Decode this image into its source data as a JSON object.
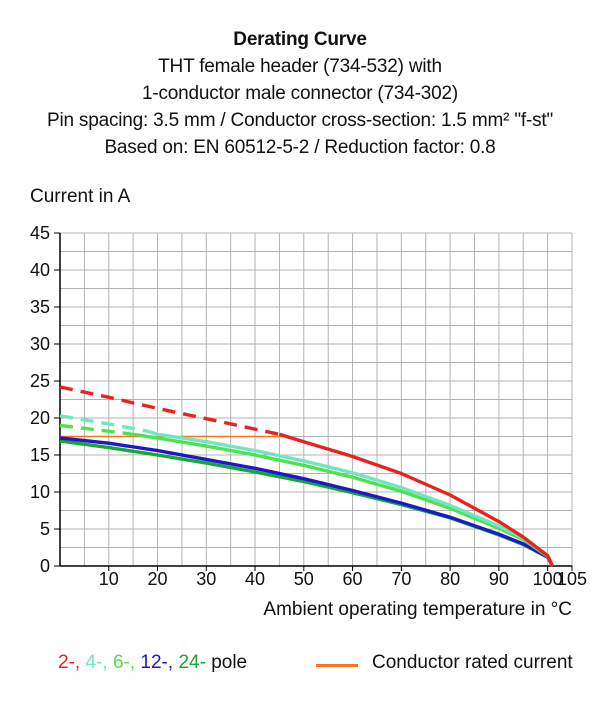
{
  "title_lines": [
    "Derating Curve",
    "THT female header (734-532) with",
    "1-conductor male connector (734-302)",
    "Pin spacing: 3.5 mm / Conductor cross-section: 1.5 mm² \"f-st\"",
    "Based on: EN 60512-5-2 / Reduction factor: 0.8"
  ],
  "legend": {
    "poles": [
      {
        "text": "2-",
        "color": "#e8231f"
      },
      {
        "text": "4-",
        "color": "#6fe8c0"
      },
      {
        "text": "6-",
        "color": "#50e050"
      },
      {
        "text": "12-",
        "color": "#1a1ac8"
      },
      {
        "text": "24-",
        "color": "#18a830"
      }
    ],
    "poles_suffix": "pole",
    "rated_label": "Conductor rated current",
    "rated_color": "#f07820"
  },
  "chart_data": {
    "type": "line",
    "title": "Derating Curve",
    "xlabel": "Ambient operating temperature in °C",
    "ylabel": "Current in A",
    "xlim": [
      0,
      105
    ],
    "ylim": [
      0,
      45
    ],
    "xticks": [
      10,
      20,
      30,
      40,
      50,
      60,
      70,
      80,
      90,
      100,
      105
    ],
    "yticks": [
      0,
      5,
      10,
      15,
      20,
      25,
      30,
      35,
      40,
      45
    ],
    "grid": true,
    "series": [
      {
        "name": "2-",
        "color": "#e8231f",
        "dashed": {
          "x": [
            0,
            10,
            20,
            30,
            40,
            45
          ],
          "y": [
            24.2,
            22.8,
            21.3,
            19.9,
            18.5,
            17.8
          ]
        },
        "solid": {
          "x": [
            45,
            50,
            60,
            70,
            80,
            90,
            95,
            100,
            101
          ],
          "y": [
            17.8,
            16.8,
            14.8,
            12.5,
            9.6,
            6.0,
            3.9,
            1.4,
            0
          ]
        }
      },
      {
        "name": "4-",
        "color": "#6fe8c0",
        "dashed": {
          "x": [
            0,
            10,
            18
          ],
          "y": [
            20.3,
            19.2,
            18.2
          ]
        },
        "solid": {
          "x": [
            18,
            20,
            30,
            40,
            50,
            60,
            70,
            80,
            90,
            95,
            100,
            101
          ],
          "y": [
            18.2,
            17.8,
            16.8,
            15.6,
            14.2,
            12.6,
            10.6,
            8.2,
            5.4,
            3.8,
            1.4,
            0
          ]
        }
      },
      {
        "name": "6-",
        "color": "#50e050",
        "dashed": {
          "x": [
            0,
            10,
            15
          ],
          "y": [
            19.0,
            18.2,
            17.8
          ]
        },
        "solid": {
          "x": [
            15,
            20,
            30,
            40,
            50,
            60,
            70,
            80,
            90,
            95,
            100,
            101
          ],
          "y": [
            17.8,
            17.3,
            16.2,
            15.0,
            13.6,
            12.0,
            10.1,
            7.8,
            5.1,
            3.6,
            1.3,
            0
          ]
        }
      },
      {
        "name": "12-",
        "color": "#1a1ac8",
        "solid": {
          "x": [
            0,
            10,
            20,
            30,
            40,
            50,
            60,
            70,
            80,
            90,
            95,
            100,
            101
          ],
          "y": [
            17.3,
            16.6,
            15.6,
            14.4,
            13.2,
            11.8,
            10.2,
            8.5,
            6.6,
            4.3,
            3.0,
            1.2,
            0
          ]
        }
      },
      {
        "name": "24-",
        "color": "#18a830",
        "solid": {
          "x": [
            0,
            10,
            20,
            30,
            40,
            50,
            60,
            70,
            80,
            90,
            95,
            100,
            101
          ],
          "y": [
            16.9,
            16.0,
            15.0,
            13.9,
            12.7,
            11.4,
            9.9,
            8.3,
            6.5,
            4.2,
            2.9,
            1.2,
            0
          ]
        }
      },
      {
        "name": "Conductor rated current",
        "color": "#f07820",
        "solid": {
          "x": [
            0,
            46
          ],
          "y": [
            17.5,
            17.5
          ]
        }
      }
    ]
  }
}
